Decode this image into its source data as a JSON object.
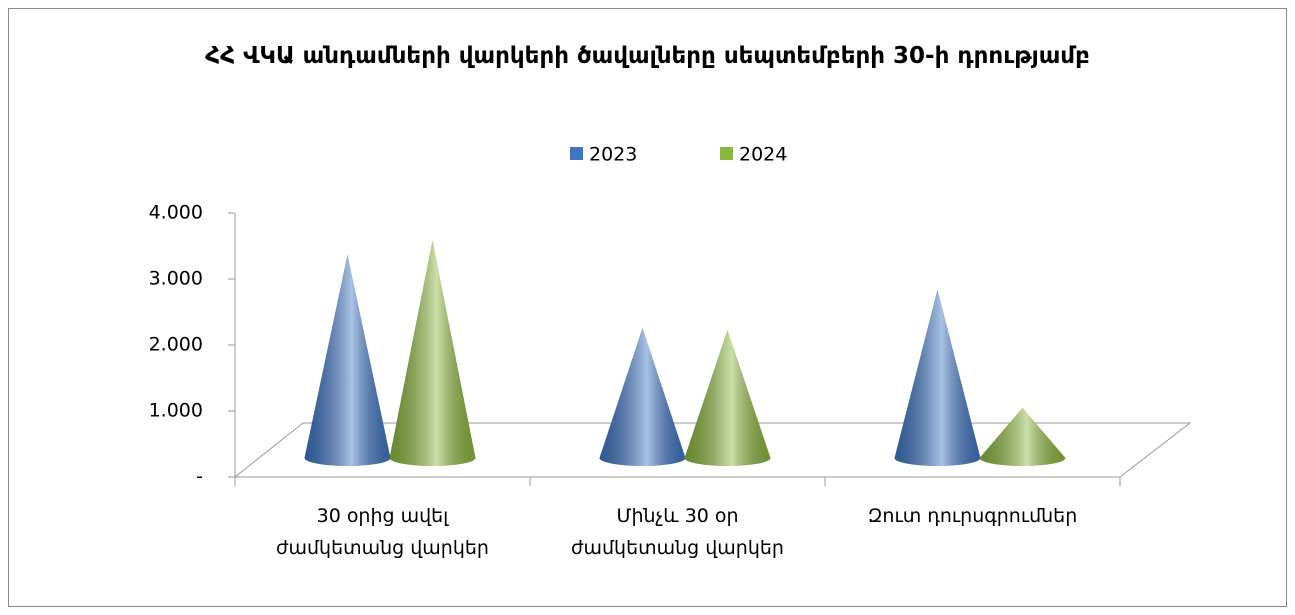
{
  "chart_data": {
    "type": "cone",
    "title": "ՀՀ ՎԿԱ անդամների վարկերի ծավալները սեպտեմբերի 30-ի դրությամբ",
    "categories": [
      "30 օրից ավել ժամկետանց վարկեր",
      "Մինչև 30 օր ժամկետանց վարկեր",
      "Զուտ դուրսգրումներ"
    ],
    "series": [
      {
        "name": "2023",
        "color": "#3f76c4",
        "values": [
          3080,
          1970,
          2550
        ]
      },
      {
        "name": "2024",
        "color": "#8db83f",
        "values": [
          3300,
          1940,
          760
        ]
      }
    ],
    "ylim": [
      0,
      4000
    ],
    "yticks": [
      {
        "value": 0,
        "label": "-"
      },
      {
        "value": 1000,
        "label": "1.000"
      },
      {
        "value": 2000,
        "label": "2.000"
      },
      {
        "value": 3000,
        "label": "3.000"
      },
      {
        "value": 4000,
        "label": "4.000"
      }
    ],
    "legend": "top"
  }
}
